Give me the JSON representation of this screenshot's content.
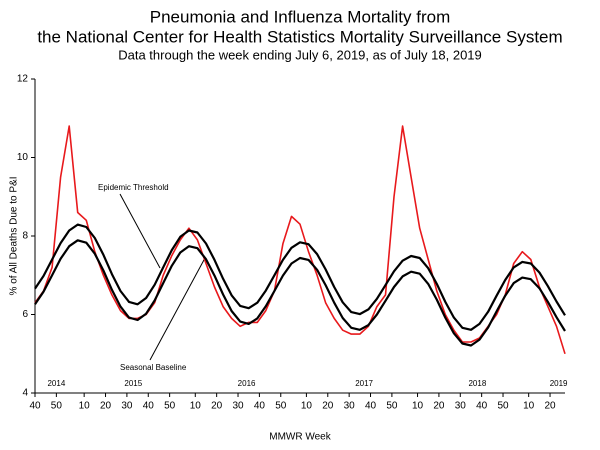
{
  "chart_data": {
    "type": "line",
    "title": [
      "Pneumonia and Influenza Mortality from",
      "the National Center for Health Statistics Mortality Surveillance System"
    ],
    "subtitle": "Data through the week ending July 6, 2019, as of July 18, 2019",
    "xlabel": "MMWR Week",
    "ylabel": "% of All Deaths Due to P&I",
    "xlim": [
      0,
      248
    ],
    "ylim": [
      4,
      12
    ],
    "yticks": [
      4,
      6,
      8,
      10,
      12
    ],
    "xticks": [
      {
        "value": 0,
        "label": "40"
      },
      {
        "value": 10,
        "label": "50"
      },
      {
        "value": 23,
        "label": "10"
      },
      {
        "value": 33,
        "label": "20"
      },
      {
        "value": 43,
        "label": "30"
      },
      {
        "value": 53,
        "label": "40"
      },
      {
        "value": 63,
        "label": "50"
      },
      {
        "value": 75,
        "label": "10"
      },
      {
        "value": 85,
        "label": "20"
      },
      {
        "value": 95,
        "label": "30"
      },
      {
        "value": 105,
        "label": "40"
      },
      {
        "value": 115,
        "label": "50"
      },
      {
        "value": 127,
        "label": "10"
      },
      {
        "value": 137,
        "label": "20"
      },
      {
        "value": 147,
        "label": "30"
      },
      {
        "value": 157,
        "label": "40"
      },
      {
        "value": 167,
        "label": "50"
      },
      {
        "value": 179,
        "label": "10"
      },
      {
        "value": 189,
        "label": "20"
      },
      {
        "value": 199,
        "label": "30"
      },
      {
        "value": 209,
        "label": "40"
      },
      {
        "value": 219,
        "label": "50"
      },
      {
        "value": 231,
        "label": "10"
      },
      {
        "value": 241,
        "label": "20"
      }
    ],
    "year_labels": {
      "x": [
        10,
        46,
        99,
        154,
        207,
        245
      ],
      "labels": [
        "2014",
        "2015",
        "2016",
        "2017",
        "2018",
        "2019"
      ]
    },
    "annotations": [
      "Epidemic Threshold",
      "Seasonal Baseline"
    ],
    "x": [
      0,
      4,
      8,
      12,
      16,
      20,
      24,
      28,
      32,
      36,
      40,
      44,
      48,
      52,
      56,
      60,
      64,
      68,
      72,
      76,
      80,
      84,
      88,
      92,
      96,
      100,
      104,
      108,
      112,
      116,
      120,
      124,
      128,
      132,
      136,
      140,
      144,
      148,
      152,
      156,
      160,
      164,
      168,
      172,
      176,
      180,
      184,
      188,
      192,
      196,
      200,
      204,
      208,
      212,
      216,
      220,
      224,
      228,
      232,
      236,
      240,
      244,
      248
    ],
    "series": [
      {
        "color": "#e8191c",
        "values": [
          6.3,
          6.6,
          7.2,
          9.5,
          10.8,
          8.6,
          8.4,
          7.6,
          7.0,
          6.5,
          6.1,
          5.9,
          5.9,
          6.0,
          6.3,
          7.0,
          7.5,
          7.9,
          8.2,
          7.9,
          7.3,
          6.7,
          6.2,
          5.9,
          5.7,
          5.8,
          5.8,
          6.1,
          6.6,
          7.8,
          8.5,
          8.3,
          7.6,
          7.0,
          6.3,
          5.9,
          5.6,
          5.5,
          5.5,
          5.7,
          6.2,
          6.5,
          9.0,
          10.8,
          9.5,
          8.2,
          7.4,
          6.6,
          6.0,
          5.6,
          5.3,
          5.3,
          5.4,
          5.7,
          6.0,
          6.5,
          7.3,
          7.6,
          7.4,
          6.7,
          6.2,
          5.7,
          5.0
        ]
      },
      {
        "color": "#000000",
        "values": [
          6.66,
          6.98,
          7.4,
          7.82,
          8.14,
          8.29,
          8.23,
          7.95,
          7.52,
          7.03,
          6.6,
          6.32,
          6.26,
          6.42,
          6.76,
          7.2,
          7.64,
          7.98,
          8.14,
          8.09,
          7.81,
          7.39,
          6.91,
          6.49,
          6.22,
          6.16,
          6.3,
          6.61,
          7.0,
          7.39,
          7.7,
          7.84,
          7.79,
          7.54,
          7.15,
          6.7,
          6.31,
          6.06,
          6.01,
          6.13,
          6.4,
          6.75,
          7.1,
          7.37,
          7.49,
          7.44,
          7.18,
          6.78,
          6.32,
          5.92,
          5.66,
          5.61,
          5.76,
          6.07,
          6.48,
          6.88,
          7.2,
          7.34,
          7.3,
          7.07,
          6.72,
          6.33,
          5.98
        ]
      },
      {
        "color": "#000000",
        "values": [
          6.26,
          6.58,
          7.0,
          7.42,
          7.74,
          7.89,
          7.83,
          7.55,
          7.12,
          6.63,
          6.2,
          5.92,
          5.86,
          6.02,
          6.36,
          6.8,
          7.24,
          7.58,
          7.74,
          7.69,
          7.41,
          6.99,
          6.51,
          6.09,
          5.82,
          5.76,
          5.9,
          6.21,
          6.6,
          6.99,
          7.3,
          7.44,
          7.39,
          7.14,
          6.75,
          6.3,
          5.91,
          5.66,
          5.61,
          5.73,
          6.0,
          6.35,
          6.7,
          6.97,
          7.09,
          7.04,
          6.78,
          6.38,
          5.92,
          5.52,
          5.26,
          5.21,
          5.36,
          5.67,
          6.08,
          6.48,
          6.8,
          6.94,
          6.9,
          6.67,
          6.32,
          5.93,
          5.58
        ]
      }
    ]
  }
}
